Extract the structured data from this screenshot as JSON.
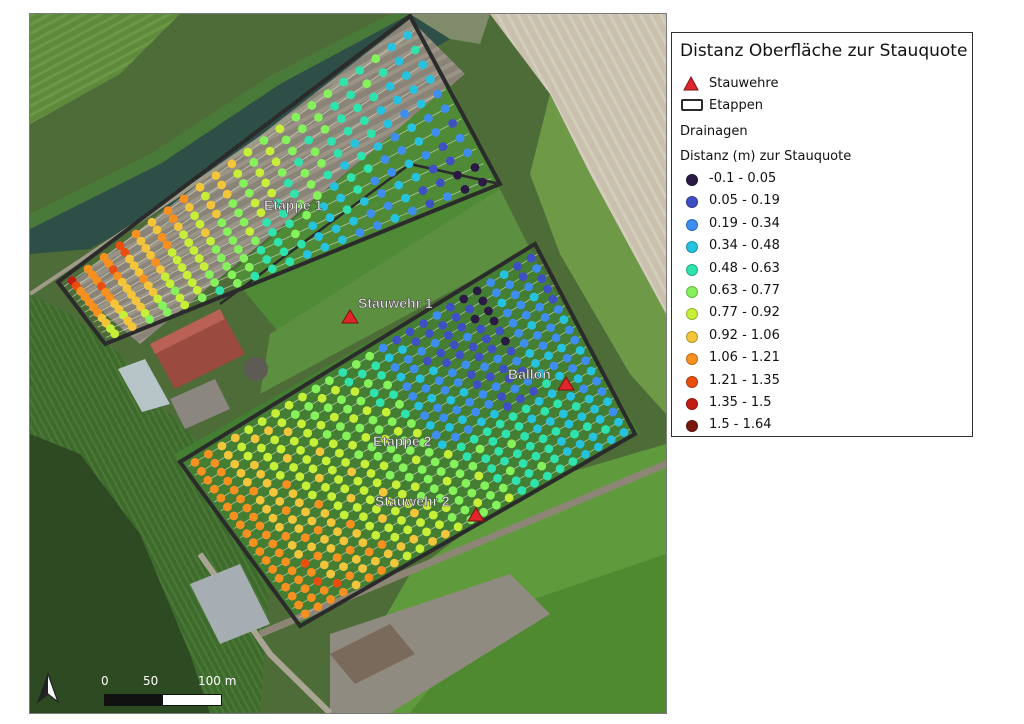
{
  "legend": {
    "title": "Distanz Oberfläche zur Stauquote",
    "stauwehre_label": "Stauwehre",
    "etappen_label": "Etappen",
    "drainagen_label": "Drainagen",
    "distance_header": "Distanz (m) zur Stauquote",
    "classes": [
      {
        "label": "-0.1 - 0.05",
        "color": "#2b1b44"
      },
      {
        "label": "0.05 - 0.19",
        "color": "#3f4fc4"
      },
      {
        "label": "0.19 - 0.34",
        "color": "#3d8ef0"
      },
      {
        "label": "0.34 - 0.48",
        "color": "#25c3df"
      },
      {
        "label": "0.48 - 0.63",
        "color": "#2fe3ae"
      },
      {
        "label": "0.63 - 0.77",
        "color": "#86f25b"
      },
      {
        "label": "0.77 - 0.92",
        "color": "#c7ef38"
      },
      {
        "label": "0.92 - 1.06",
        "color": "#f3c53a"
      },
      {
        "label": "1.06 - 1.21",
        "color": "#f8901f"
      },
      {
        "label": "1.21 - 1.35",
        "color": "#e94e0f"
      },
      {
        "label": "1.35 - 1.5",
        "color": "#c41d12"
      },
      {
        "label": "1.5 - 1.64",
        "color": "#7a1710"
      }
    ]
  },
  "map": {
    "labels": {
      "etappe1": "Etappe 1",
      "etappe2": "Etappe 2",
      "stauwehr1": "Stauwehr 1",
      "stauwehr2": "Stauwehr 2",
      "ballon": "Ballon"
    },
    "scale_labels": [
      "0",
      "50",
      "100 m"
    ],
    "north_icon": "north-arrow-icon",
    "weir_color": "#e0262b"
  }
}
